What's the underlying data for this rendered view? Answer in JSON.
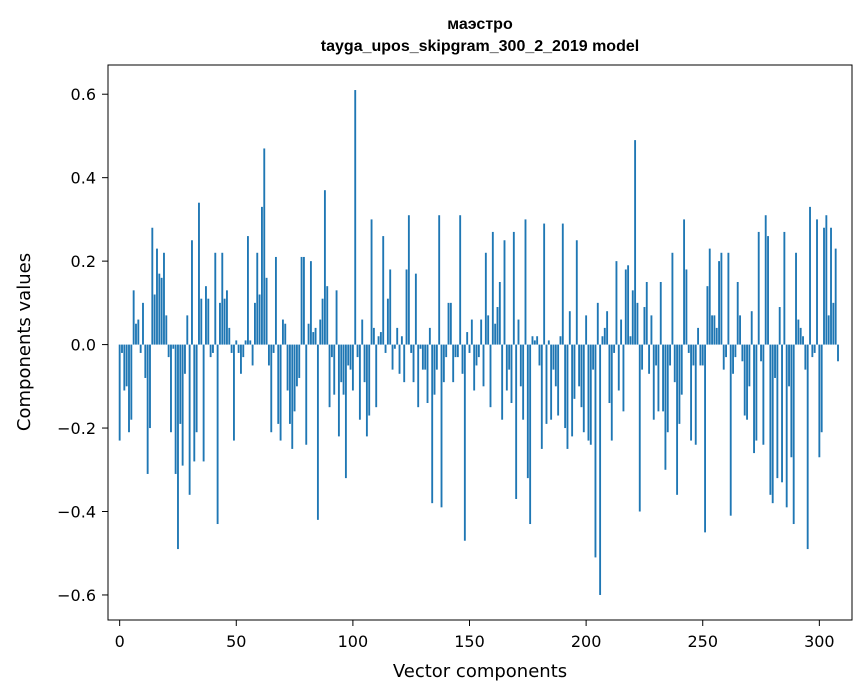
{
  "chart_data": {
    "type": "bar",
    "title": "маэстро",
    "subtitle": "tayga_upos_skipgram_300_2_2019 model",
    "xlabel": "Vector components",
    "ylabel": "Components values",
    "xlim": [
      -5,
      314
    ],
    "ylim": [
      -0.66,
      0.67
    ],
    "xticks": [
      0,
      50,
      100,
      150,
      200,
      250,
      300
    ],
    "xtick_labels": [
      "0",
      "50",
      "100",
      "150",
      "200",
      "250",
      "300"
    ],
    "yticks": [
      0.6,
      0.4,
      0.2,
      0.0,
      -0.2,
      -0.4,
      -0.6
    ],
    "ytick_labels": [
      "0.6",
      "0.4",
      "0.2",
      "0.0",
      "−0.2",
      "−0.4",
      "−0.6"
    ],
    "bar_color": "#1f77b4",
    "values": [
      -0.23,
      -0.02,
      -0.11,
      -0.1,
      -0.21,
      -0.18,
      0.13,
      0.05,
      0.06,
      -0.02,
      0.1,
      -0.08,
      -0.31,
      -0.2,
      0.28,
      0.12,
      0.23,
      0.17,
      0.16,
      0.22,
      0.07,
      -0.03,
      -0.21,
      -0.01,
      -0.31,
      -0.49,
      -0.19,
      -0.29,
      -0.07,
      0.07,
      -0.36,
      0.25,
      -0.28,
      -0.21,
      0.34,
      0.11,
      -0.28,
      0.14,
      0.11,
      -0.03,
      -0.02,
      0.22,
      -0.43,
      0.1,
      0.22,
      0.11,
      0.13,
      0.04,
      -0.02,
      -0.23,
      0.01,
      -0.02,
      -0.07,
      -0.03,
      0.01,
      0.26,
      0.01,
      -0.05,
      0.1,
      0.22,
      0.12,
      0.33,
      0.47,
      0.16,
      -0.05,
      -0.21,
      -0.02,
      0.21,
      -0.19,
      -0.23,
      0.06,
      0.05,
      -0.11,
      -0.19,
      -0.25,
      -0.16,
      -0.1,
      -0.08,
      0.21,
      0.21,
      -0.24,
      0.05,
      0.2,
      0.03,
      0.04,
      -0.42,
      0.06,
      0.11,
      0.37,
      0.14,
      -0.15,
      -0.03,
      -0.12,
      0.13,
      -0.22,
      -0.09,
      -0.12,
      -0.32,
      -0.05,
      -0.06,
      -0.11,
      0.61,
      -0.03,
      -0.18,
      0.06,
      -0.09,
      -0.22,
      -0.17,
      0.3,
      0.04,
      -0.15,
      0.02,
      0.03,
      0.26,
      -0.02,
      0.11,
      0.18,
      -0.06,
      -0.01,
      0.04,
      -0.07,
      0.02,
      -0.09,
      0.18,
      0.31,
      -0.02,
      -0.09,
      0.17,
      -0.15,
      -0.01,
      -0.06,
      -0.06,
      -0.14,
      0.04,
      -0.38,
      -0.12,
      -0.06,
      0.31,
      -0.39,
      -0.09,
      -0.03,
      0.1,
      0.1,
      -0.09,
      -0.03,
      -0.03,
      0.31,
      -0.07,
      -0.47,
      0.03,
      -0.02,
      0.06,
      -0.11,
      -0.05,
      -0.03,
      0.06,
      -0.1,
      0.22,
      0.07,
      -0.15,
      0.27,
      0.05,
      0.09,
      0.15,
      -0.18,
      0.25,
      -0.11,
      -0.06,
      -0.14,
      0.27,
      -0.37,
      0.06,
      -0.1,
      -0.18,
      0.3,
      -0.32,
      -0.43,
      0.02,
      0.01,
      0.02,
      -0.05,
      -0.25,
      0.29,
      -0.19,
      0.01,
      -0.18,
      -0.06,
      -0.1,
      -0.17,
      0.02,
      0.29,
      -0.2,
      -0.25,
      0.08,
      -0.22,
      -0.13,
      0.25,
      -0.1,
      -0.15,
      -0.21,
      0.07,
      -0.23,
      -0.24,
      -0.06,
      -0.51,
      0.1,
      -0.6,
      0.02,
      0.04,
      0.08,
      -0.14,
      -0.23,
      -0.02,
      0.2,
      -0.11,
      0.06,
      -0.16,
      0.18,
      0.19,
      0.02,
      0.13,
      0.49,
      0.1,
      -0.4,
      -0.06,
      0.09,
      0.15,
      -0.07,
      0.07,
      -0.18,
      -0.05,
      -0.16,
      0.15,
      -0.16,
      -0.3,
      -0.21,
      -0.05,
      0.22,
      -0.09,
      -0.36,
      -0.19,
      -0.12,
      0.3,
      0.18,
      -0.02,
      -0.23,
      -0.05,
      -0.24,
      0.04,
      -0.05,
      -0.05,
      -0.45,
      0.14,
      0.23,
      0.07,
      0.07,
      0.04,
      0.2,
      0.22,
      -0.06,
      -0.03,
      0.22,
      -0.41,
      -0.07,
      -0.03,
      0.15,
      0.07,
      -0.04,
      -0.17,
      -0.18,
      -0.1,
      0.08,
      -0.26,
      -0.23,
      0.27,
      -0.04,
      -0.24,
      0.31,
      0.26,
      -0.36,
      -0.38,
      -0.08,
      -0.32,
      0.09,
      -0.33,
      0.27,
      -0.39,
      -0.1,
      -0.27,
      -0.43,
      0.22,
      0.06,
      0.04,
      0.02,
      -0.06,
      -0.49,
      0.33,
      -0.03,
      -0.02,
      0.3,
      -0.27,
      -0.21,
      0.28,
      0.31,
      0.07,
      0.28,
      0.1,
      0.23,
      -0.04
    ]
  }
}
